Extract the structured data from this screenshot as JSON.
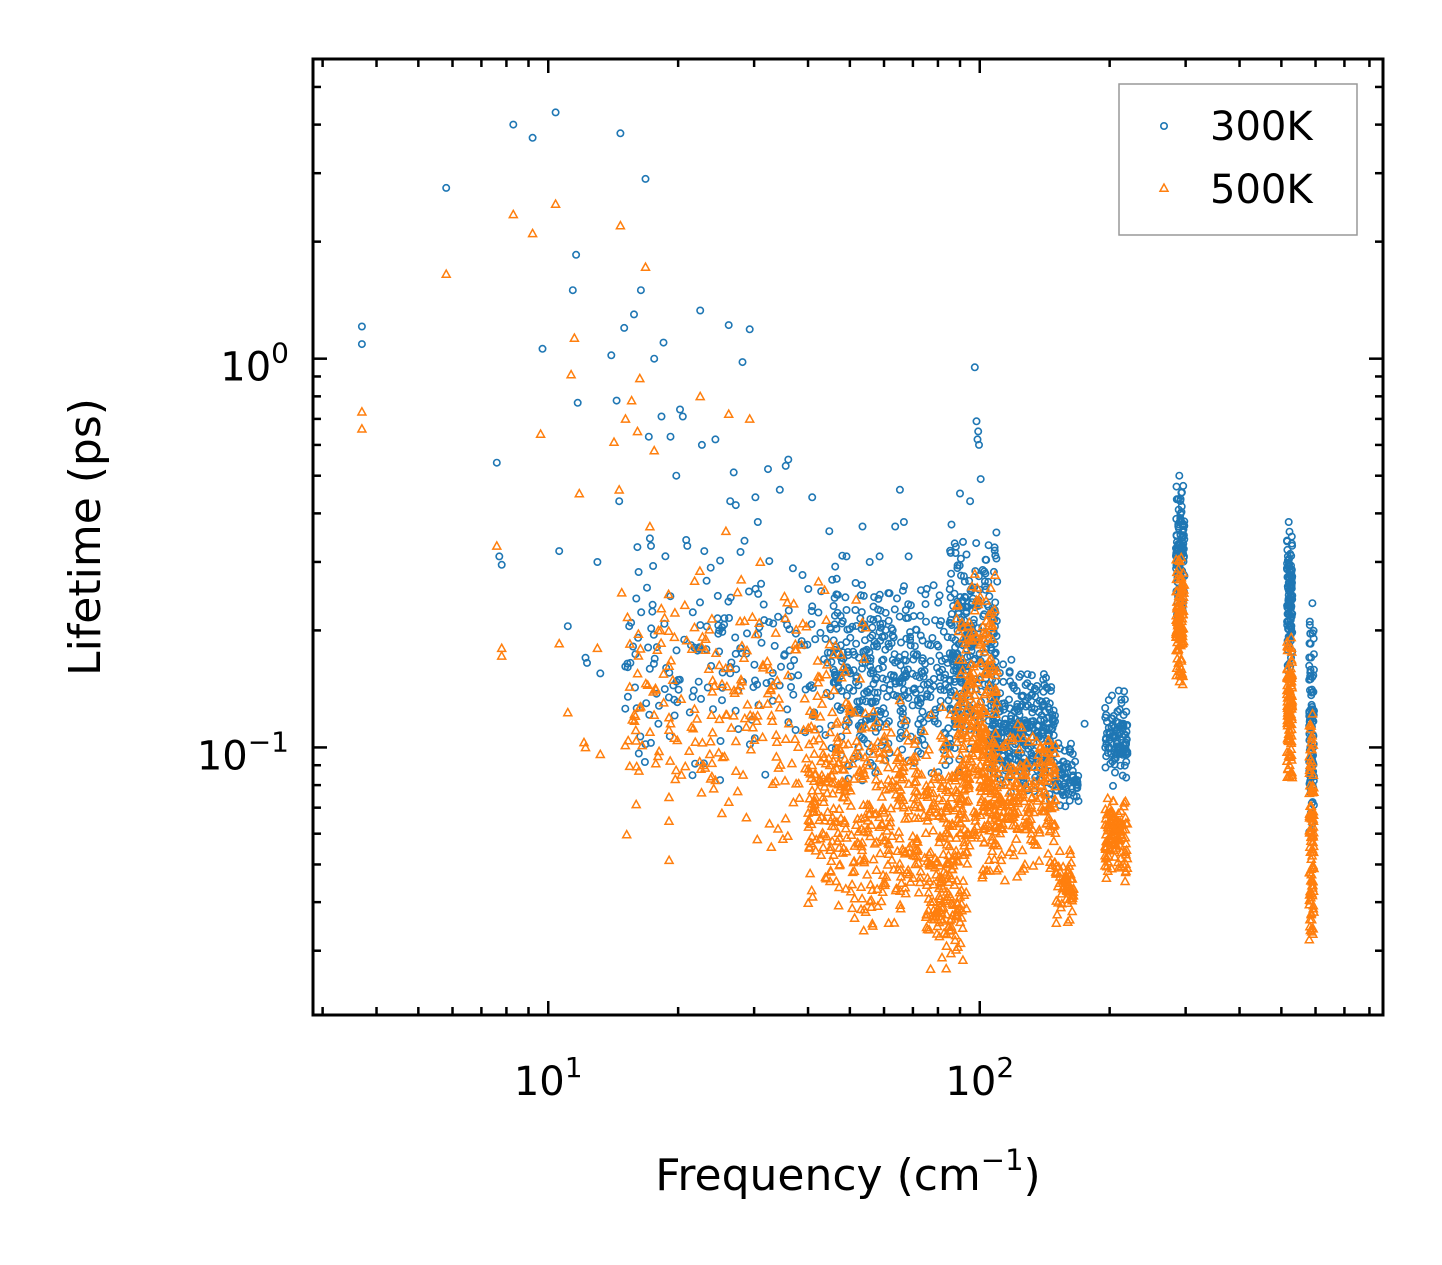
{
  "chart_data": {
    "type": "scatter",
    "xscale": "log",
    "yscale": "log",
    "xlim": [
      2.85,
      860
    ],
    "ylim": [
      0.0205,
      5.9
    ],
    "xlabel": "Frequency (cm",
    "xlabel_sup": "−1",
    "xlabel_end": ")",
    "ylabel": "Lifetime (ps)",
    "x_ticks": [
      {
        "value": 10,
        "base": "10",
        "exp": "1"
      },
      {
        "value": 100,
        "base": "10",
        "exp": "2"
      }
    ],
    "y_ticks": [
      {
        "value": 1,
        "base": "10",
        "exp": "0"
      },
      {
        "value": 0.1,
        "base": "10",
        "exp": "−1"
      }
    ],
    "legend": {
      "position": "top-right"
    },
    "series": [
      {
        "name": "300K",
        "marker": "circle",
        "color": "#1f77b4",
        "points": [
          [
            3.7,
            1.21
          ],
          [
            3.7,
            1.09
          ],
          [
            5.8,
            2.75
          ],
          [
            7.6,
            0.54
          ],
          [
            7.7,
            0.31
          ],
          [
            7.8,
            0.295
          ],
          [
            8.3,
            4.0
          ],
          [
            9.2,
            3.7
          ],
          [
            9.7,
            1.06
          ],
          [
            10.4,
            4.3
          ],
          [
            10.6,
            0.32
          ],
          [
            11.1,
            0.205
          ],
          [
            11.4,
            1.5
          ],
          [
            11.6,
            1.85
          ],
          [
            11.7,
            0.77
          ],
          [
            12.2,
            0.17
          ],
          [
            12.3,
            0.165
          ],
          [
            13.0,
            0.3
          ],
          [
            13.2,
            0.155
          ],
          [
            14.0,
            1.02
          ],
          [
            14.4,
            0.78
          ],
          [
            14.6,
            0.43
          ],
          [
            14.7,
            3.8
          ],
          [
            15.0,
            1.2
          ],
          [
            15.3,
            0.135
          ],
          [
            15.4,
            0.205
          ],
          [
            15.5,
            0.165
          ],
          [
            15.8,
            1.3
          ],
          [
            16.4,
            1.5
          ],
          [
            16.8,
            2.9
          ],
          [
            17.1,
            0.63
          ],
          [
            17.2,
            0.345
          ],
          [
            17.3,
            0.33
          ],
          [
            17.6,
            1.0
          ],
          [
            18.0,
            0.115
          ],
          [
            18.3,
            0.71
          ],
          [
            18.5,
            1.1
          ],
          [
            19.2,
            0.63
          ],
          [
            19.8,
            0.5
          ],
          [
            20.2,
            0.74
          ],
          [
            20.5,
            0.71
          ],
          [
            21.0,
            0.33
          ],
          [
            21.6,
            0.135
          ],
          [
            22.5,
            1.33
          ],
          [
            22.7,
            0.6
          ],
          [
            23.0,
            0.32
          ],
          [
            23.8,
            0.29
          ],
          [
            24.4,
            0.62
          ],
          [
            24.9,
            0.2
          ],
          [
            25.6,
            0.215
          ],
          [
            26.2,
            1.22
          ],
          [
            26.4,
            0.43
          ],
          [
            26.9,
            0.51
          ],
          [
            27.2,
            0.42
          ],
          [
            28.2,
            0.98
          ],
          [
            28.5,
            0.34
          ],
          [
            29.3,
            1.19
          ],
          [
            30.2,
            0.44
          ],
          [
            30.6,
            0.38
          ],
          [
            32.3,
            0.52
          ],
          [
            34.4,
            0.46
          ],
          [
            35.5,
            0.53
          ],
          [
            36.0,
            0.55
          ],
          [
            40.9,
            0.44
          ],
          [
            44.8,
            0.36
          ],
          [
            49.1,
            0.31
          ],
          [
            53.5,
            0.37
          ],
          [
            55.6,
            0.3
          ],
          [
            58.6,
            0.31
          ],
          [
            63.7,
            0.37
          ],
          [
            65.3,
            0.46
          ],
          [
            66.7,
            0.38
          ],
          [
            68.4,
            0.31
          ],
          [
            90.0,
            0.45
          ],
          [
            95.0,
            0.43
          ],
          [
            97.4,
            0.95
          ],
          [
            98.3,
            0.69
          ],
          [
            98.8,
            0.62
          ],
          [
            99.2,
            0.65
          ],
          [
            99.6,
            0.6
          ],
          [
            100.5,
            0.49
          ],
          [
            132.2,
            0.137
          ],
          [
            175.0,
            0.115
          ],
          [
            210.0,
            0.14
          ],
          [
            290.0,
            0.5
          ],
          [
            520.0,
            0.38
          ],
          [
            590.0,
            0.235
          ]
        ],
        "clusters": [
          {
            "x": [
              15,
              60
            ],
            "y": [
              0.078,
              0.36
            ],
            "n": 230
          },
          {
            "x": [
              45,
              95
            ],
            "y": [
              0.082,
              0.28
            ],
            "n": 400
          },
          {
            "x": [
              85,
              110
            ],
            "y": [
              0.1,
              0.38
            ],
            "n": 220
          },
          {
            "x": [
              105,
              150
            ],
            "y": [
              0.073,
              0.17
            ],
            "n": 320
          },
          {
            "x": [
              145,
              170
            ],
            "y": [
              0.068,
              0.105
            ],
            "n": 80
          },
          {
            "x": [
              195,
              220
            ],
            "y": [
              0.078,
              0.14
            ],
            "n": 110
          },
          {
            "x": [
              285,
              298
            ],
            "y": [
              0.2,
              0.5
            ],
            "n": 110
          },
          {
            "x": [
              515,
              530
            ],
            "y": [
              0.15,
              0.38
            ],
            "n": 110
          },
          {
            "x": [
              580,
              595
            ],
            "y": [
              0.055,
              0.23
            ],
            "n": 110
          }
        ]
      },
      {
        "name": "500K",
        "marker": "triangle",
        "color": "#ff7f0e",
        "points": [
          [
            3.7,
            0.73
          ],
          [
            3.7,
            0.66
          ],
          [
            5.8,
            1.65
          ],
          [
            7.6,
            0.33
          ],
          [
            7.8,
            0.18
          ],
          [
            7.8,
            0.172
          ],
          [
            8.3,
            2.35
          ],
          [
            9.2,
            2.1
          ],
          [
            9.6,
            0.64
          ],
          [
            10.4,
            2.5
          ],
          [
            10.6,
            0.185
          ],
          [
            11.1,
            0.123
          ],
          [
            11.3,
            0.91
          ],
          [
            11.5,
            1.13
          ],
          [
            11.8,
            0.45
          ],
          [
            12.1,
            0.103
          ],
          [
            12.2,
            0.1
          ],
          [
            13.0,
            0.18
          ],
          [
            13.2,
            0.096
          ],
          [
            14.2,
            0.61
          ],
          [
            14.6,
            0.46
          ],
          [
            14.7,
            2.2
          ],
          [
            14.8,
            0.25
          ],
          [
            15.1,
            0.7
          ],
          [
            15.6,
            0.78
          ],
          [
            16.1,
            0.65
          ],
          [
            16.3,
            0.89
          ],
          [
            16.8,
            1.72
          ],
          [
            17.2,
            0.37
          ],
          [
            17.6,
            0.58
          ],
          [
            18.0,
            0.2
          ],
          [
            18.2,
            0.2
          ],
          [
            22.5,
            0.8
          ],
          [
            25.8,
            0.36
          ],
          [
            26.2,
            0.72
          ],
          [
            28.0,
            0.27
          ],
          [
            29.3,
            0.7
          ],
          [
            31.0,
            0.3
          ]
        ],
        "clusters": [
          {
            "x": [
              15,
              55
            ],
            "y": [
              0.05,
              0.3
            ],
            "n": 260
          },
          {
            "x": [
              40,
              95
            ],
            "y": [
              0.033,
              0.14
            ],
            "n": 520
          },
          {
            "x": [
              75,
              92
            ],
            "y": [
              0.026,
              0.06
            ],
            "n": 100
          },
          {
            "x": [
              88,
              110
            ],
            "y": [
              0.045,
              0.32
            ],
            "n": 260
          },
          {
            "x": [
              100,
              150
            ],
            "y": [
              0.045,
              0.12
            ],
            "n": 280
          },
          {
            "x": [
              150,
              165
            ],
            "y": [
              0.035,
              0.055
            ],
            "n": 60
          },
          {
            "x": [
              195,
              220
            ],
            "y": [
              0.045,
              0.076
            ],
            "n": 110
          },
          {
            "x": [
              285,
              298
            ],
            "y": [
              0.135,
              0.32
            ],
            "n": 110
          },
          {
            "x": [
              515,
              530
            ],
            "y": [
              0.078,
              0.2
            ],
            "n": 110
          },
          {
            "x": [
              580,
              595
            ],
            "y": [
              0.027,
              0.15
            ],
            "n": 110
          }
        ]
      }
    ]
  }
}
